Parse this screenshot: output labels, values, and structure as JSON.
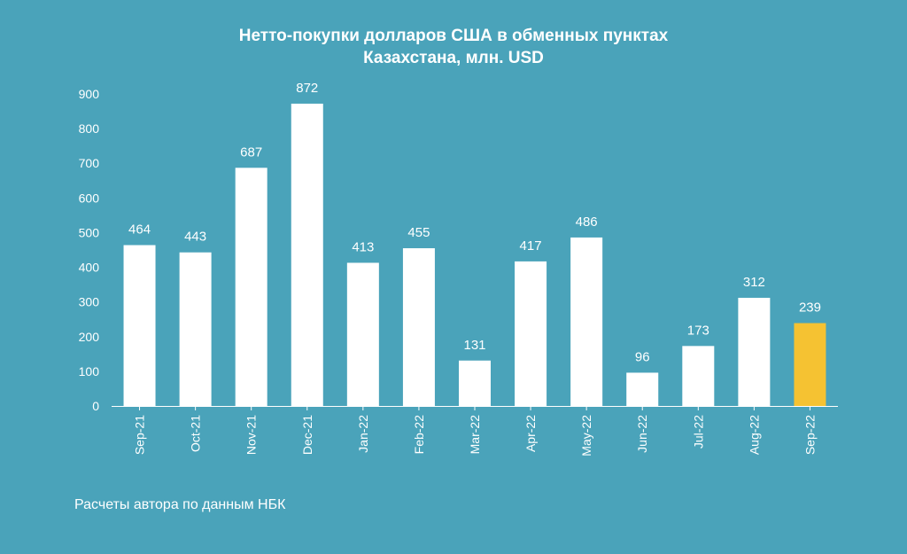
{
  "chart_data": {
    "type": "bar",
    "title_line1": "Нетто-покупки долларов США в обменных пунктах",
    "title_line2": "Казахстана, млн. USD",
    "categories": [
      "Sep-21",
      "Oct-21",
      "Nov-21",
      "Dec-21",
      "Jan-22",
      "Feb-22",
      "Mar-22",
      "Apr-22",
      "May-22",
      "Jun-22",
      "Jul-22",
      "Aug-22",
      "Sep-22"
    ],
    "values": [
      464,
      443,
      687,
      872,
      413,
      455,
      131,
      417,
      486,
      96,
      173,
      312,
      239
    ],
    "highlight_index": 12,
    "ylim": [
      0,
      900
    ],
    "yticks": [
      0,
      100,
      200,
      300,
      400,
      500,
      600,
      700,
      800,
      900
    ],
    "xlabel": "",
    "ylabel": "",
    "grid": false,
    "legend": "none"
  },
  "colors": {
    "background": "#4aa3ba",
    "bar": "#ffffff",
    "highlight": "#f5c232",
    "text": "#ffffff"
  },
  "source_note": "Расчеты автора по данным НБК"
}
